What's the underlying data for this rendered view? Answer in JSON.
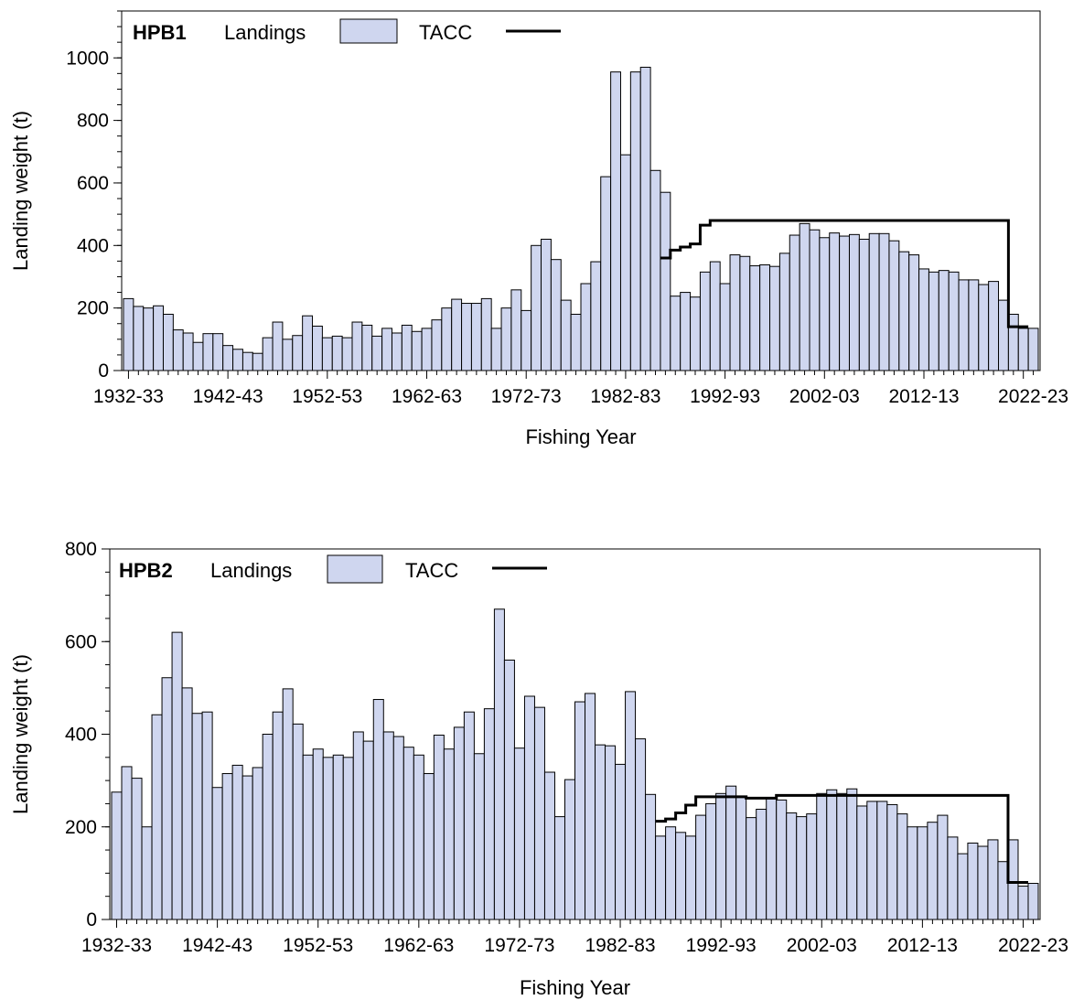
{
  "legend": {
    "landings_label": "Landings",
    "tacc_label": "TACC"
  },
  "colors": {
    "bar_fill": "#cfd6ef",
    "bar_stroke": "#000000",
    "tacc_line": "#000000"
  },
  "chart_data": [
    {
      "type": "bar",
      "panel": "HPB1",
      "xlabel": "Fishing Year",
      "ylabel": "Landing weight (t)",
      "ylim": [
        0,
        1150
      ],
      "yticks": [
        0,
        200,
        400,
        600,
        800,
        1000
      ],
      "x_start_year": 1932,
      "xtick_labels": [
        "1932-33",
        "1942-43",
        "1952-53",
        "1962-63",
        "1972-73",
        "1982-83",
        "1992-93",
        "2002-03",
        "2012-13",
        "2022-23"
      ],
      "series": [
        {
          "name": "Landings",
          "type": "bar",
          "values": [
            230,
            205,
            200,
            207,
            180,
            130,
            120,
            90,
            118,
            118,
            80,
            68,
            58,
            55,
            105,
            155,
            100,
            112,
            175,
            142,
            105,
            110,
            105,
            155,
            145,
            110,
            135,
            120,
            145,
            125,
            135,
            162,
            200,
            228,
            215,
            215,
            230,
            135,
            200,
            258,
            192,
            400,
            420,
            355,
            225,
            180,
            278,
            348,
            620,
            955,
            690,
            955,
            970,
            640,
            570,
            238,
            250,
            235,
            315,
            348,
            278,
            370,
            365,
            335,
            338,
            333,
            375,
            433,
            470,
            450,
            425,
            440,
            430,
            435,
            420,
            438,
            438,
            415,
            380,
            370,
            325,
            315,
            320,
            315,
            290,
            290,
            275,
            285,
            225,
            180,
            135,
            135
          ]
        },
        {
          "name": "TACC",
          "type": "step",
          "points": [
            [
              1986,
              360
            ],
            [
              1987,
              385
            ],
            [
              1988,
              395
            ],
            [
              1989,
              405
            ],
            [
              1990,
              465
            ],
            [
              1991,
              480
            ],
            [
              2021,
              480
            ],
            [
              2021,
              140
            ],
            [
              2023,
              140
            ]
          ]
        }
      ]
    },
    {
      "type": "bar",
      "panel": "HPB2",
      "xlabel": "Fishing Year",
      "ylabel": "Landing weight (t)",
      "ylim": [
        0,
        800
      ],
      "yticks": [
        0,
        200,
        400,
        600,
        800
      ],
      "x_start_year": 1932,
      "xtick_labels": [
        "1932-33",
        "1942-43",
        "1952-53",
        "1962-63",
        "1972-73",
        "1982-83",
        "1992-93",
        "2002-03",
        "2012-13",
        "2022-23"
      ],
      "series": [
        {
          "name": "Landings",
          "type": "bar",
          "values": [
            275,
            330,
            305,
            200,
            442,
            522,
            620,
            500,
            445,
            448,
            285,
            315,
            333,
            310,
            328,
            400,
            448,
            498,
            422,
            355,
            368,
            350,
            355,
            350,
            405,
            385,
            475,
            405,
            395,
            372,
            355,
            315,
            398,
            368,
            415,
            448,
            358,
            455,
            670,
            560,
            370,
            482,
            458,
            318,
            222,
            302,
            470,
            488,
            377,
            375,
            335,
            492,
            390,
            270,
            180,
            200,
            188,
            180,
            225,
            250,
            272,
            288,
            265,
            220,
            238,
            262,
            258,
            230,
            222,
            228,
            272,
            280,
            272,
            282,
            245,
            255,
            255,
            248,
            228,
            200,
            200,
            210,
            225,
            178,
            142,
            165,
            158,
            172,
            125,
            172,
            72,
            78
          ]
        },
        {
          "name": "TACC",
          "type": "step",
          "points": [
            [
              1986,
              212
            ],
            [
              1987,
              217
            ],
            [
              1988,
              230
            ],
            [
              1989,
              247
            ],
            [
              1990,
              265
            ],
            [
              1995,
              265
            ],
            [
              1995,
              262
            ],
            [
              1998,
              262
            ],
            [
              1998,
              268
            ],
            [
              2021,
              268
            ],
            [
              2021,
              80
            ],
            [
              2023,
              80
            ]
          ]
        }
      ]
    }
  ]
}
